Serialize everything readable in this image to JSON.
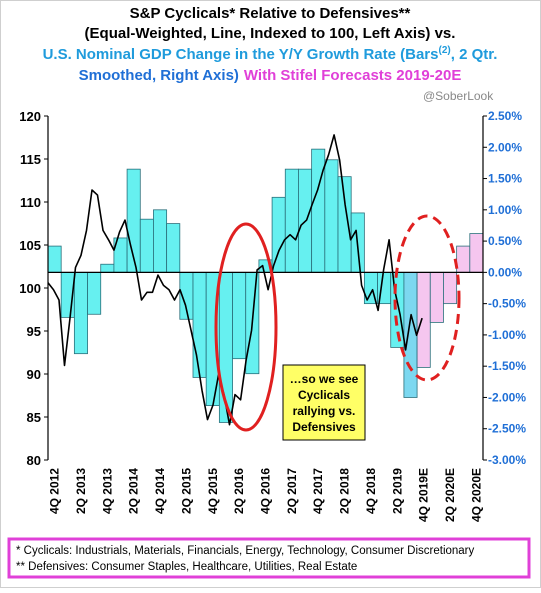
{
  "chart_data": {
    "type": "bar",
    "title": [
      "S&P Cyclicals* Relative to Defensives**",
      "(Equal-Weighted, Line, Indexed to 100, Left Axis) vs."
    ],
    "subtitle": [
      "U.S. Nominal GDP Change in the Y/Y Growth Rate (Bars",
      "(2)",
      ", 2 Qtr.",
      "Smoothed, Right Axis)",
      "With Stifel Forecasts 2019-20E"
    ],
    "watermark": "@SoberLook",
    "annotation": [
      "…so we see",
      "Cyclicals",
      "rallying vs.",
      "Defensives"
    ],
    "footnotes": [
      "* Cyclicals: Industrials, Materials, Financials, Energy, Technology, Consumer Discretionary",
      "** Defensives: Consumer Staples, Healthcare, Utilities, Real Estate"
    ],
    "categories": [
      "4Q 2012",
      null,
      "2Q 2013",
      null,
      "4Q 2013",
      null,
      "2Q 2014",
      null,
      "4Q 2014",
      null,
      "2Q 2015",
      null,
      "4Q 2015",
      null,
      "2Q 2016",
      null,
      "4Q 2016",
      null,
      "2Q 2017",
      null,
      "4Q 2017",
      null,
      "2Q 2018",
      null,
      "4Q 2018",
      null,
      "2Q 2019",
      null,
      "4Q 2019E",
      null,
      "2Q 2020E",
      null,
      "4Q 2020E"
    ],
    "values": [
      0.42,
      -0.72,
      -1.3,
      -0.67,
      0.13,
      0.55,
      1.65,
      0.85,
      1.0,
      0.78,
      -0.75,
      -1.68,
      -2.13,
      -2.4,
      -1.38,
      -1.62,
      0.2,
      1.2,
      1.65,
      1.65,
      1.97,
      1.8,
      1.53,
      0.95,
      -0.5,
      -0.5,
      -1.2,
      -2.0,
      -1.52,
      -0.8,
      -0.5,
      0.42,
      0.62
    ],
    "bar_colors": [
      "#66f0f0",
      "#66f0f0",
      "#66f0f0",
      "#66f0f0",
      "#66f0f0",
      "#66f0f0",
      "#66f0f0",
      "#66f0f0",
      "#66f0f0",
      "#66f0f0",
      "#66f0f0",
      "#66f0f0",
      "#66f0f0",
      "#66f0f0",
      "#66f0f0",
      "#66f0f0",
      "#66f0f0",
      "#66f0f0",
      "#66f0f0",
      "#66f0f0",
      "#66f0f0",
      "#66f0f0",
      "#66f0f0",
      "#66f0f0",
      "#66f0f0",
      "#66f0f0",
      "#66f0f0",
      "#7cd8f0",
      "#f5c6ef",
      "#f5c6ef",
      "#f5c6ef",
      "#f5c6ef",
      "#f5c6ef"
    ],
    "line": {
      "color": "#000000",
      "values": [
        100.6,
        99.8,
        98.6,
        91,
        96.5,
        102.4,
        103.8,
        106.7,
        111.4,
        110.8,
        106.7,
        105.6,
        104.4,
        106.5,
        107.9,
        105,
        102.4,
        98.6,
        99.5,
        99.5,
        101.5,
        100.3,
        99.8,
        98.6,
        99.8,
        98,
        95.1,
        92.2,
        88.1,
        84.7,
        86.4,
        89.9,
        87.6,
        84.1,
        87.6,
        87,
        91.6,
        95.1,
        102.1,
        102.6,
        99.8,
        102.6,
        104.4,
        105.6,
        106.2,
        105.6,
        107.3,
        107.9,
        109.7,
        111.4,
        113.7,
        115.5,
        117.8,
        114.9,
        109.7,
        105.6,
        106.7,
        100.3,
        98.6,
        99.8,
        97.4,
        102.1,
        105.6,
        99.8,
        96.9,
        92.8,
        96.9,
        94.5,
        96.5
      ]
    },
    "ylim": [
      80,
      120
    ],
    "yticks": [
      80,
      85,
      90,
      95,
      100,
      105,
      110,
      115,
      120
    ],
    "y2lim": [
      -3.0,
      2.5
    ],
    "y2ticks": [
      {
        "value": 2.5,
        "label": "2.50%"
      },
      {
        "value": 2.0,
        "label": "2.00%"
      },
      {
        "value": 1.5,
        "label": "1.50%"
      },
      {
        "value": 1.0,
        "label": "1.00%"
      },
      {
        "value": 0.5,
        "label": "0.50%"
      },
      {
        "value": 0,
        "label": "0.00%"
      },
      {
        "value": -0.5,
        "label": "-0.50%"
      },
      {
        "value": -1.0,
        "label": "-1.00%"
      },
      {
        "value": -1.5,
        "label": "-1.50%"
      },
      {
        "value": -2.0,
        "label": "-2.00%"
      },
      {
        "value": -2.5,
        "label": "-2.50%"
      },
      {
        "value": -3.0,
        "label": "-3.00%"
      }
    ],
    "y2_color": "#1f6fd6"
  }
}
